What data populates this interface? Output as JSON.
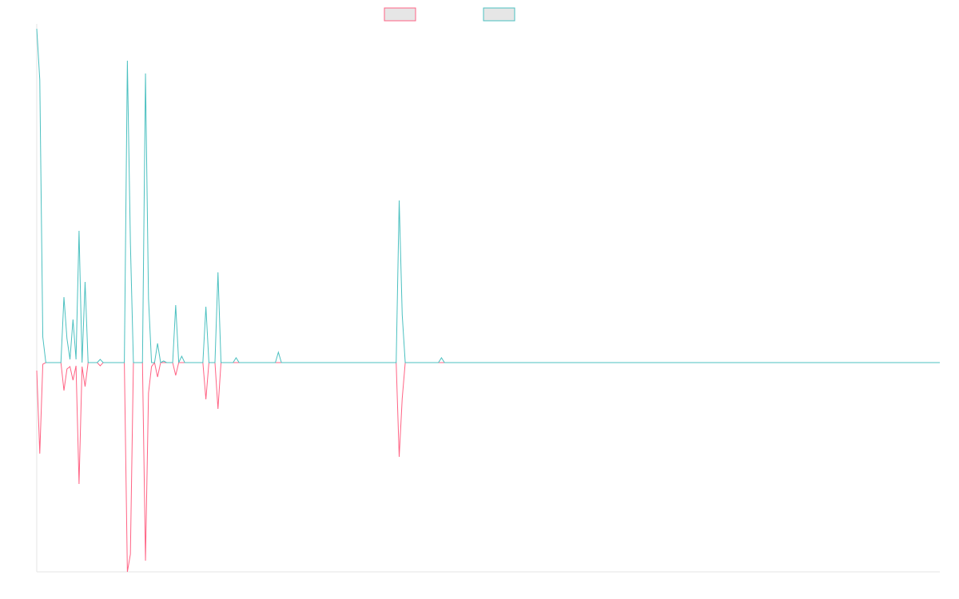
{
  "chart_data": {
    "type": "line",
    "ylim": [
      -262,
      424
    ],
    "series": [
      {
        "color": "#ff6384",
        "values": [
          -10,
          -114,
          -2,
          0,
          0,
          0,
          0,
          0,
          0,
          -35,
          -8,
          -5,
          -22,
          -4,
          -152,
          -5,
          -30,
          0,
          0,
          0,
          0,
          -4,
          0,
          0,
          0,
          0,
          0,
          0,
          0,
          0,
          -262,
          -240,
          0,
          0,
          0,
          0,
          -248,
          -38,
          -5,
          0,
          -18,
          0,
          0,
          0,
          0,
          0,
          -16,
          0,
          0,
          0,
          0,
          0,
          0,
          0,
          0,
          0,
          -46,
          0,
          0,
          0,
          -58,
          0,
          0,
          0,
          0,
          0,
          0,
          0,
          0,
          0,
          0,
          0,
          0,
          0,
          0,
          0,
          0,
          0,
          0,
          0,
          0,
          0,
          0,
          0,
          0,
          0,
          0,
          0,
          0,
          0,
          0,
          0,
          0,
          0,
          0,
          0,
          0,
          0,
          0,
          0,
          0,
          0,
          0,
          0,
          0,
          0,
          0,
          0,
          0,
          0,
          0,
          0,
          0,
          0,
          0,
          0,
          0,
          0,
          0,
          0,
          -118,
          -45,
          0,
          0,
          0,
          0,
          0,
          0,
          0,
          0,
          0,
          0,
          0,
          0,
          0,
          0,
          0,
          0,
          0,
          0,
          0,
          0,
          0,
          0,
          0,
          0,
          0,
          0,
          0,
          0,
          0,
          0,
          0,
          0,
          0,
          0,
          0,
          0,
          0,
          0,
          0,
          0,
          0,
          0,
          0,
          0,
          0,
          0,
          0,
          0,
          0,
          0,
          0,
          0,
          0,
          0,
          0,
          0,
          0,
          0,
          0,
          0,
          0,
          0,
          0,
          0,
          0,
          0,
          0,
          0,
          0,
          0,
          0,
          0,
          0,
          0,
          0,
          0,
          0,
          0,
          0,
          0,
          0,
          0,
          0,
          0,
          0,
          0,
          0,
          0,
          0,
          0,
          0,
          0,
          0,
          0,
          0,
          0,
          0,
          0,
          0,
          0,
          0,
          0,
          0,
          0,
          0,
          0,
          0,
          0,
          0,
          0,
          0,
          0,
          0,
          0,
          0,
          0,
          0,
          0,
          0,
          0,
          0,
          0,
          0,
          0,
          0,
          0,
          0,
          0,
          0,
          0,
          0,
          0,
          0,
          0,
          0,
          0,
          0,
          0,
          0,
          0,
          0,
          0,
          0,
          0,
          0,
          0,
          0,
          0,
          0,
          0,
          0,
          0,
          0,
          0,
          0,
          0,
          0,
          0,
          0,
          0,
          0,
          0,
          0,
          0,
          0,
          0,
          0,
          0,
          0,
          0,
          0,
          0,
          0,
          0,
          0,
          0,
          0,
          0
        ]
      },
      {
        "color": "#4bc0c0",
        "values": [
          418,
          354,
          32,
          0,
          0,
          0,
          0,
          0,
          0,
          82,
          30,
          4,
          54,
          4,
          165,
          0,
          101,
          0,
          0,
          0,
          0,
          4,
          0,
          0,
          0,
          0,
          0,
          0,
          0,
          0,
          378,
          150,
          0,
          0,
          0,
          0,
          362,
          80,
          0,
          0,
          24,
          0,
          2,
          0,
          0,
          0,
          72,
          0,
          8,
          0,
          0,
          0,
          0,
          0,
          0,
          0,
          70,
          0,
          0,
          0,
          113,
          0,
          0,
          0,
          0,
          0,
          6,
          0,
          0,
          0,
          0,
          0,
          0,
          0,
          0,
          0,
          0,
          0,
          0,
          0,
          13,
          0,
          0,
          0,
          0,
          0,
          0,
          0,
          0,
          0,
          0,
          0,
          0,
          0,
          0,
          0,
          0,
          0,
          0,
          0,
          0,
          0,
          0,
          0,
          0,
          0,
          0,
          0,
          0,
          0,
          0,
          0,
          0,
          0,
          0,
          0,
          0,
          0,
          0,
          0,
          203,
          60,
          0,
          0,
          0,
          0,
          0,
          0,
          0,
          0,
          0,
          0,
          0,
          0,
          6,
          0,
          0,
          0,
          0,
          0,
          0,
          0,
          0,
          0,
          0,
          0,
          0,
          0,
          0,
          0,
          0,
          0,
          0,
          0,
          0,
          0,
          0,
          0,
          0,
          0,
          0,
          0,
          0,
          0,
          0,
          0,
          0,
          0,
          0,
          0,
          0,
          0,
          0,
          0,
          0,
          0,
          0,
          0,
          0,
          0,
          0,
          0,
          0,
          0,
          0,
          0,
          0,
          0,
          0,
          0,
          0,
          0,
          0,
          0,
          0,
          0,
          0,
          0,
          0,
          0,
          0,
          0,
          0,
          0,
          0,
          0,
          0,
          0,
          0,
          0,
          0,
          0,
          0,
          0,
          0,
          0,
          0,
          0,
          0,
          0,
          0,
          0,
          0,
          0,
          0,
          0,
          0,
          0,
          0,
          0,
          0,
          0,
          0,
          0,
          0,
          0,
          0,
          0,
          0,
          0,
          0,
          0,
          0,
          0,
          0,
          0,
          0,
          0,
          0,
          0,
          0,
          0,
          0,
          0,
          0,
          0,
          0,
          0,
          0,
          0,
          0,
          0,
          0,
          0,
          0,
          0,
          0,
          0,
          0,
          0,
          0,
          0,
          0,
          0,
          0,
          0,
          0,
          0,
          0,
          0,
          0,
          0,
          0,
          0,
          0,
          0,
          0,
          0,
          0,
          0,
          0,
          0,
          0,
          0,
          0,
          0,
          0,
          0,
          0,
          0
        ]
      }
    ]
  }
}
